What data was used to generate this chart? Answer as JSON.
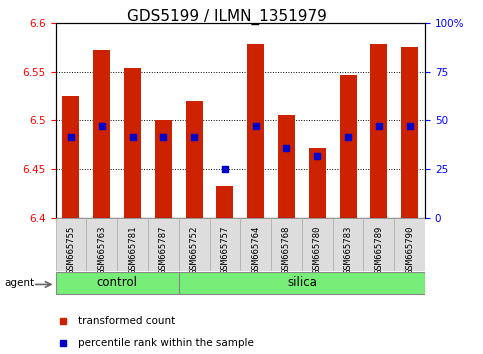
{
  "title": "GDS5199 / ILMN_1351979",
  "samples": [
    "GSM665755",
    "GSM665763",
    "GSM665781",
    "GSM665787",
    "GSM665752",
    "GSM665757",
    "GSM665764",
    "GSM665768",
    "GSM665780",
    "GSM665783",
    "GSM665789",
    "GSM665790"
  ],
  "bar_tops": [
    6.525,
    6.572,
    6.554,
    6.5,
    6.52,
    6.433,
    6.578,
    6.505,
    6.472,
    6.547,
    6.578,
    6.575
  ],
  "blue_y": [
    6.483,
    6.494,
    6.483,
    6.483,
    6.483,
    6.45,
    6.494,
    6.472,
    6.463,
    6.483,
    6.494,
    6.494
  ],
  "bar_bottom": 6.4,
  "ylim_left": [
    6.4,
    6.6
  ],
  "ylim_right": [
    0,
    100
  ],
  "yticks_left": [
    6.4,
    6.45,
    6.5,
    6.55,
    6.6
  ],
  "yticks_right": [
    0,
    25,
    50,
    75,
    100
  ],
  "ytick_labels_right": [
    "0",
    "25",
    "50",
    "75",
    "100%"
  ],
  "bar_color": "#cc2200",
  "blue_color": "#0000cc",
  "group_control": {
    "label": "control",
    "start": 0,
    "end": 4
  },
  "group_silica": {
    "label": "silica",
    "start": 4,
    "end": 12
  },
  "group_color": "#77ee77",
  "agent_label": "agent",
  "legend_items": [
    {
      "label": "transformed count",
      "color": "#cc2200"
    },
    {
      "label": "percentile rank within the sample",
      "color": "#0000cc"
    }
  ],
  "title_fontsize": 11,
  "tick_fontsize": 7.5,
  "xtick_fontsize": 6.5,
  "group_fontsize": 8.5,
  "legend_fontsize": 7.5,
  "bar_width": 0.55
}
